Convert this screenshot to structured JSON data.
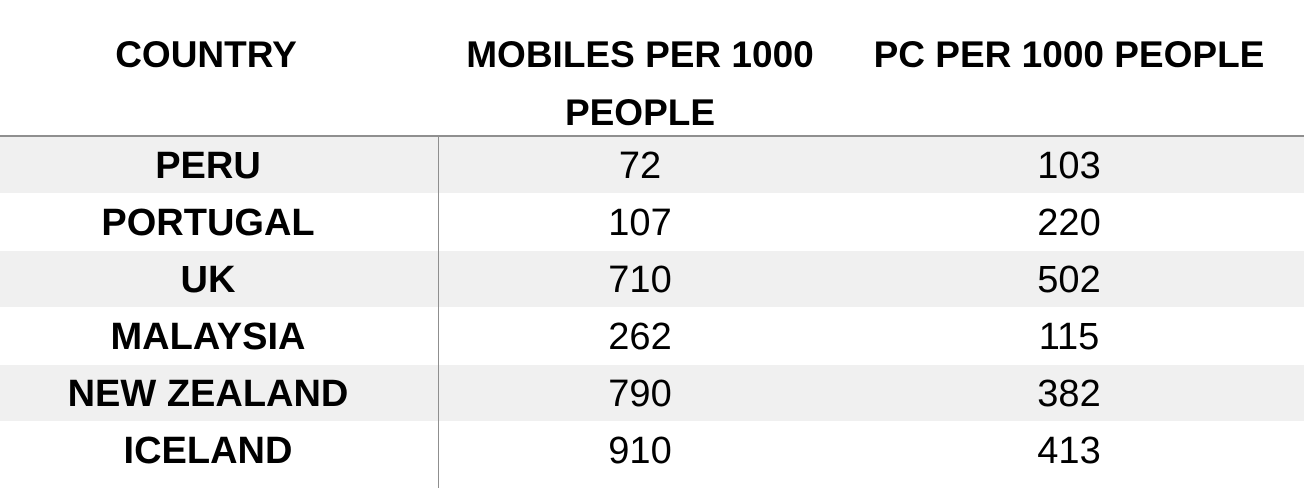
{
  "chart_data": {
    "type": "table",
    "columns": [
      "COUNTRY",
      "MOBILES PER 1000 PEOPLE",
      "PC PER 1000 PEOPLE"
    ],
    "rows": [
      {
        "country": "PERU",
        "mobiles": 72,
        "pc": 103
      },
      {
        "country": "PORTUGAL",
        "mobiles": 107,
        "pc": 220
      },
      {
        "country": "UK",
        "mobiles": 710,
        "pc": 502
      },
      {
        "country": "MALAYSIA",
        "mobiles": 262,
        "pc": 115
      },
      {
        "country": "NEW ZEALAND",
        "mobiles": 790,
        "pc": 382
      },
      {
        "country": "ICELAND",
        "mobiles": 910,
        "pc": 413
      }
    ]
  },
  "colors": {
    "shaded_row": "#f0f0f0",
    "rule": "#8f8f8f"
  }
}
